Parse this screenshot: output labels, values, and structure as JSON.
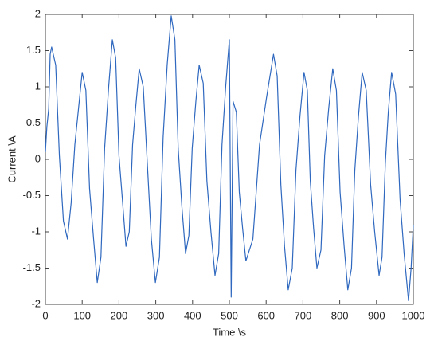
{
  "chart_data": {
    "type": "line",
    "x_label": "Time \\s",
    "y_label": "Current \\A",
    "color": "#2f68bf",
    "x": [
      0,
      4,
      9,
      13,
      17,
      28,
      38,
      49,
      60,
      70,
      80,
      90,
      100,
      110,
      120,
      131,
      141,
      151,
      161,
      172,
      182,
      191,
      200,
      210,
      219,
      228,
      237,
      246,
      255,
      266,
      277,
      288,
      299,
      310,
      320,
      331,
      342,
      352,
      361,
      371,
      381,
      390,
      399,
      409,
      418,
      429,
      439,
      450,
      461,
      471,
      480,
      490,
      500,
      505,
      510,
      519,
      527,
      536,
      545,
      564,
      582,
      601,
      620,
      630,
      640,
      650,
      660,
      671,
      681,
      692,
      703,
      712,
      720,
      729,
      738,
      749,
      759,
      770,
      781,
      791,
      801,
      812,
      822,
      832,
      841,
      851,
      861,
      872,
      884,
      895,
      907,
      915,
      924,
      932,
      941,
      952,
      964,
      975,
      987,
      994,
      1000
    ],
    "values": [
      0.1,
      0.45,
      0.7,
      1.45,
      1.55,
      1.3,
      0.05,
      -0.85,
      -1.1,
      -0.6,
      0.2,
      0.7,
      1.2,
      0.95,
      -0.4,
      -1.1,
      -1.7,
      -1.35,
      0.15,
      1.0,
      1.65,
      1.4,
      0.05,
      -0.6,
      -1.2,
      -1.0,
      0.2,
      0.75,
      1.25,
      1.0,
      -0.05,
      -1.1,
      -1.7,
      -1.35,
      0.3,
      1.3,
      1.98,
      1.65,
      0.15,
      -0.65,
      -1.3,
      -1.05,
      0.15,
      0.8,
      1.3,
      1.05,
      -0.3,
      -1.0,
      -1.6,
      -1.3,
      0.2,
      1.0,
      1.65,
      -1.9,
      0.8,
      0.65,
      -0.45,
      -0.95,
      -1.4,
      -1.1,
      0.2,
      0.85,
      1.45,
      1.15,
      -0.35,
      -1.2,
      -1.8,
      -1.5,
      -0.15,
      0.6,
      1.2,
      0.95,
      -0.3,
      -0.95,
      -1.5,
      -1.25,
      0.05,
      0.7,
      1.25,
      0.95,
      -0.45,
      -1.2,
      -1.8,
      -1.5,
      -0.15,
      0.6,
      1.2,
      0.95,
      -0.35,
      -1.0,
      -1.6,
      -1.35,
      -0.05,
      0.65,
      1.2,
      0.9,
      -0.55,
      -1.3,
      -1.95,
      -1.5,
      -0.9
    ],
    "xlim": [
      0,
      1000
    ],
    "ylim": [
      -2,
      2
    ],
    "xticks": [
      0,
      100,
      200,
      300,
      400,
      500,
      600,
      700,
      800,
      900,
      1000
    ],
    "yticks": [
      2,
      1.5,
      1,
      0.5,
      0,
      -0.5,
      -1,
      -1.5,
      -2
    ],
    "grid": false
  }
}
